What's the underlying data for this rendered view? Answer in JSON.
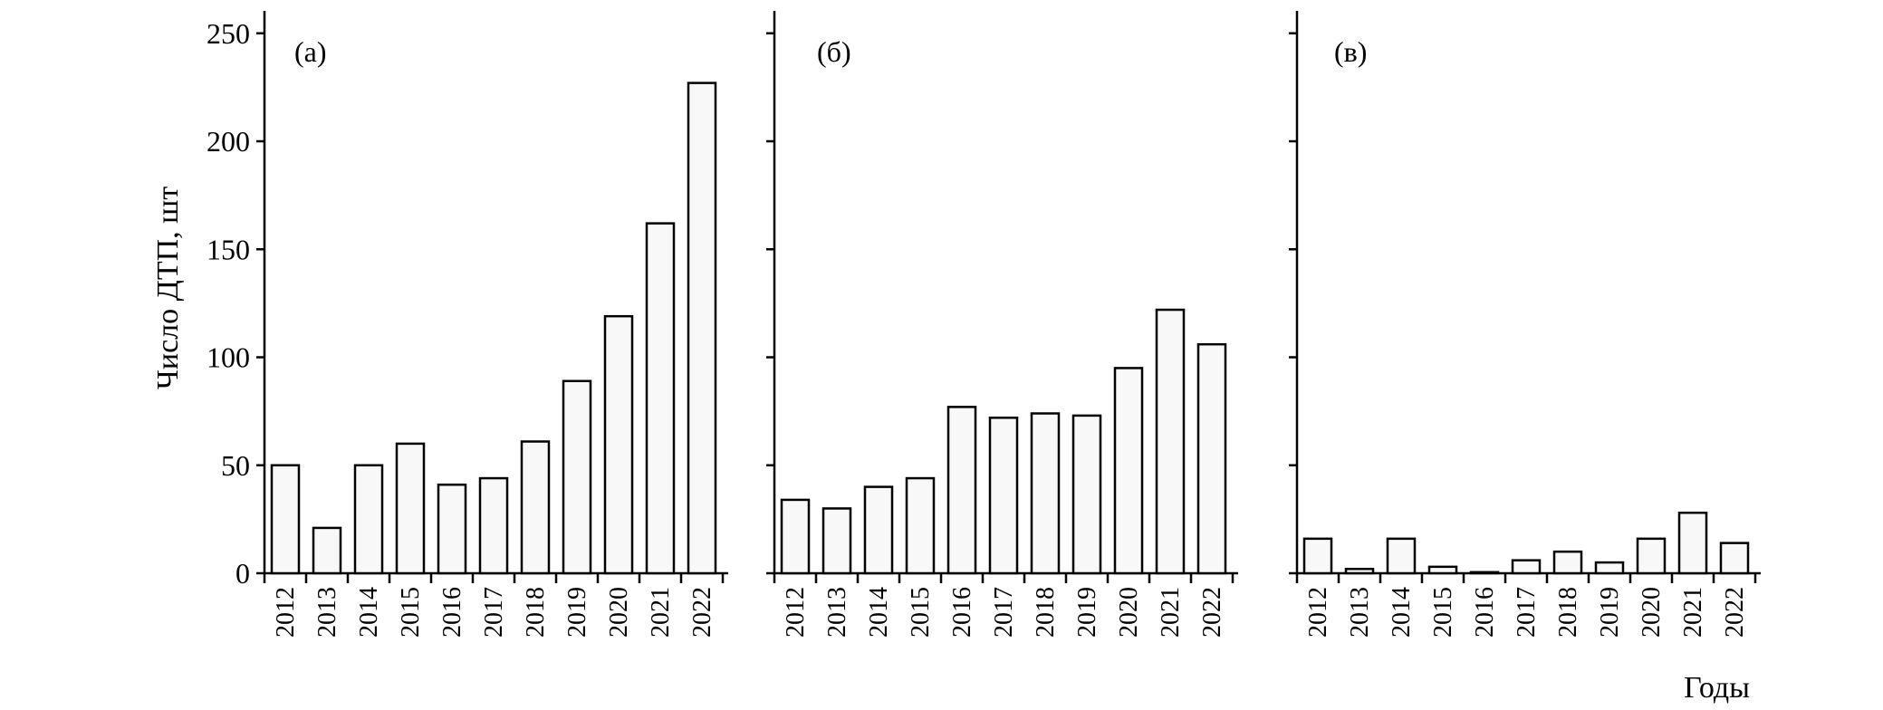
{
  "chart_data": {
    "type": "bar",
    "ylabel": "Число ДТП, шт",
    "xlabel": "Годы",
    "ylim": [
      0,
      260
    ],
    "yticks": [
      0,
      50,
      100,
      150,
      200,
      250
    ],
    "categories": [
      "2012",
      "2013",
      "2014",
      "2015",
      "2016",
      "2017",
      "2018",
      "2019",
      "2020",
      "2021",
      "2022"
    ],
    "panels": [
      {
        "label": "(а)",
        "values": [
          50,
          21,
          50,
          60,
          41,
          44,
          61,
          89,
          119,
          162,
          227
        ]
      },
      {
        "label": "(б)",
        "values": [
          34,
          30,
          40,
          44,
          77,
          72,
          74,
          73,
          95,
          122,
          106
        ]
      },
      {
        "label": "(в)",
        "values": [
          16,
          2,
          16,
          3,
          0.5,
          6,
          10,
          5,
          16,
          28,
          14
        ]
      }
    ]
  }
}
